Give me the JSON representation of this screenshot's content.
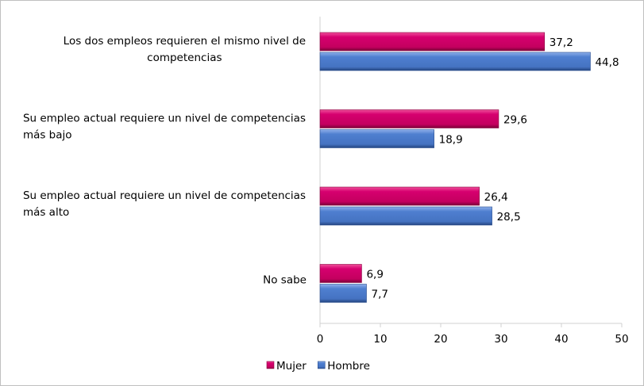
{
  "chart_data": {
    "type": "bar",
    "orientation": "horizontal",
    "categories": [
      [
        "Los dos empleos requieren el mismo nivel de",
        "competencias"
      ],
      [
        "Su empleo actual requiere un nivel de competencias",
        "más bajo"
      ],
      [
        "Su empleo actual requiere un nivel de competencias",
        "más alto"
      ],
      [
        "No sabe"
      ]
    ],
    "series": [
      {
        "name": "Mujer",
        "color": "#d6006f",
        "values": [
          37.2,
          29.6,
          26.4,
          6.9
        ],
        "labels": [
          "37,2",
          "29,6",
          "26,4",
          "6,9"
        ]
      },
      {
        "name": "Hombre",
        "color": "#4a78c8",
        "values": [
          44.8,
          18.9,
          28.5,
          7.7
        ],
        "labels": [
          "44,8",
          "18,9",
          "28,5",
          "7,7"
        ]
      }
    ],
    "xlim": [
      0,
      50
    ],
    "xticks": [
      "0",
      "10",
      "20",
      "30",
      "40",
      "50"
    ],
    "grid": false,
    "legend": "bottom-left"
  }
}
